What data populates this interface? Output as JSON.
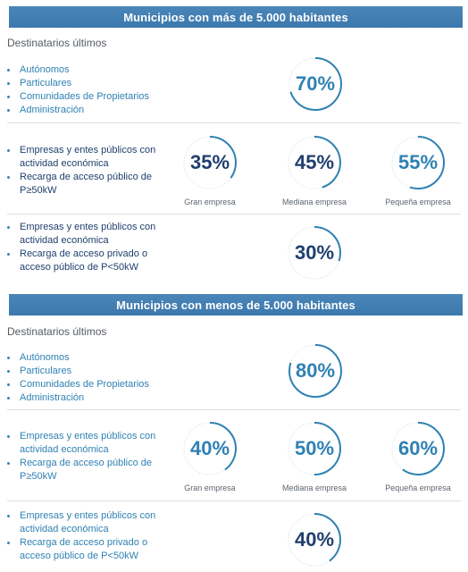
{
  "section1": {
    "title": "Municipios con más de 5.000 habitantes",
    "subtitle": "Destinatarios últimos",
    "group1": {
      "items": [
        "Autónomos",
        "Particulares",
        "Comunidades de Propietarios",
        "Administración"
      ],
      "value": "70%",
      "fraction": 0.7
    },
    "group2": {
      "items": [
        "Empresas y entes públicos con actividad económica",
        "Recarga de acceso público de P≥50kW"
      ],
      "circles": [
        {
          "value": "35%",
          "fraction": 0.35,
          "label": "Gran empresa"
        },
        {
          "value": "45%",
          "fraction": 0.45,
          "label": "Mediana empresa"
        },
        {
          "value": "55%",
          "fraction": 0.55,
          "label": "Pequeña empresa"
        }
      ]
    },
    "group3": {
      "items": [
        "Empresas y entes públicos con actividad económica",
        "Recarga de acceso privado o acceso público de P<50kW"
      ],
      "value": "30%",
      "fraction": 0.3
    }
  },
  "section2": {
    "title": "Municipios con menos de 5.000 habitantes",
    "subtitle": "Destinatarios últimos",
    "group1": {
      "items": [
        "Autónomos",
        "Particulares",
        "Comunidades de Propietarios",
        "Administración"
      ],
      "value": "80%",
      "fraction": 0.8
    },
    "group2": {
      "items": [
        "Empresas y entes públicos con actividad económica",
        "Recarga de acceso público de P≥50kW"
      ],
      "circles": [
        {
          "value": "40%",
          "fraction": 0.4,
          "label": "Gran empresa"
        },
        {
          "value": "50%",
          "fraction": 0.5,
          "label": "Mediana empresa"
        },
        {
          "value": "60%",
          "fraction": 0.6,
          "label": "Pequeña empresa"
        }
      ]
    },
    "group3": {
      "items": [
        "Empresas y entes públicos con actividad económica",
        "Recarga de acceso privado o acceso público de P<50kW"
      ],
      "value": "40%",
      "fraction": 0.4
    }
  },
  "colors": {
    "banner": "#3c78ad",
    "accent": "#2f81b3",
    "navy": "#1f3f6d",
    "ring_track": "#c9dce9"
  }
}
